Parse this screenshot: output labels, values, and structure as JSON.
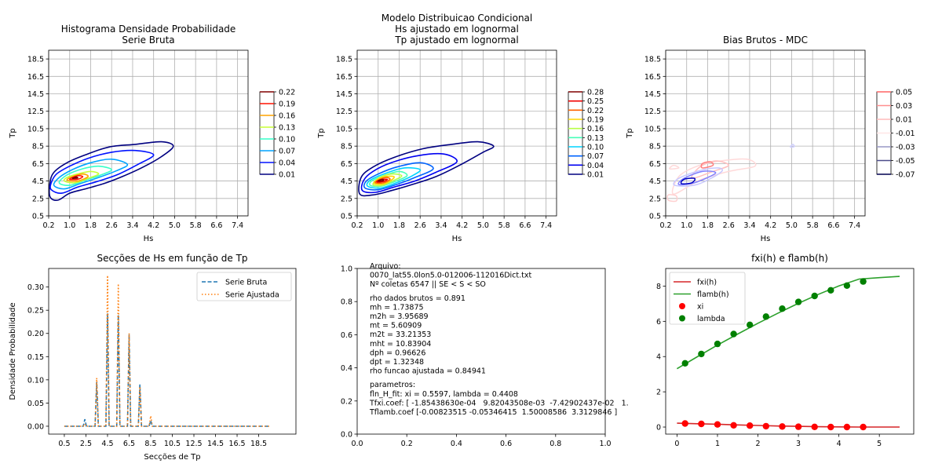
{
  "figure": {
    "panels": [
      {
        "id": "p1",
        "title": [
          "Histograma Densidade Probabilidade",
          "Serie Bruta"
        ],
        "xlabel": "Hs",
        "ylabel": "Tp"
      },
      {
        "id": "p2",
        "title": [
          "Modelo Distribuicao Condicional",
          "Hs ajustado em lognormal",
          "Tp ajustado em lognormal"
        ],
        "xlabel": "Hs",
        "ylabel": "Tp"
      },
      {
        "id": "p3",
        "title": [
          "Bias Brutos - MDC"
        ],
        "xlabel": "Hs",
        "ylabel": "Tp"
      },
      {
        "id": "p4",
        "title": [
          "Secções de Hs em função de Tp"
        ],
        "xlabel": "Secções de Tp",
        "ylabel": "Densidade Probabilidade"
      },
      {
        "id": "p5",
        "title": [],
        "xlabel": "",
        "ylabel": ""
      },
      {
        "id": "p6",
        "title": [
          "fxi(h) e flamb(h)"
        ],
        "xlabel": "",
        "ylabel": ""
      }
    ]
  },
  "chart_data": [
    {
      "type": "contour",
      "panel": "p1",
      "title": "Histograma Densidade Probabilidade Serie Bruta",
      "xlabel": "Hs",
      "ylabel": "Tp",
      "xlim": [
        0.2,
        7.8
      ],
      "ylim": [
        0.5,
        19.5
      ],
      "xticks": [
        "0.2",
        "1.0",
        "1.8",
        "2.6",
        "3.4",
        "4.2",
        "5.0",
        "5.8",
        "6.6",
        "7.4"
      ],
      "yticks": [
        "0.5",
        "2.5",
        "4.5",
        "6.5",
        "8.5",
        "10.5",
        "12.5",
        "14.5",
        "16.5",
        "18.5"
      ],
      "grid": true,
      "colormap": "jet",
      "colorbar": [
        "0.01",
        "0.04",
        "0.07",
        "0.10",
        "0.13",
        "0.16",
        "0.19",
        "0.22"
      ],
      "peak": {
        "hs": 1.1,
        "tp": 4.9,
        "density": 0.22
      }
    },
    {
      "type": "contour",
      "panel": "p2",
      "title": "Modelo Distribuicao Condicional Hs ajustado em lognormal Tp ajustado em lognormal",
      "xlabel": "Hs",
      "ylabel": "Tp",
      "xlim": [
        0.2,
        7.8
      ],
      "ylim": [
        0.5,
        19.5
      ],
      "xticks": [
        "0.2",
        "1.0",
        "1.8",
        "2.6",
        "3.4",
        "4.2",
        "5.0",
        "5.8",
        "6.6",
        "7.4"
      ],
      "yticks": [
        "0.5",
        "2.5",
        "4.5",
        "6.5",
        "8.5",
        "10.5",
        "12.5",
        "14.5",
        "16.5",
        "18.5"
      ],
      "grid": true,
      "colormap": "jet",
      "colorbar": [
        "0.01",
        "0.04",
        "0.07",
        "0.10",
        "0.13",
        "0.16",
        "0.19",
        "0.22",
        "0.25",
        "0.28"
      ],
      "peak": {
        "hs": 1.1,
        "tp": 4.6,
        "density": 0.28
      }
    },
    {
      "type": "contour",
      "panel": "p3",
      "title": "Bias Brutos - MDC",
      "xlabel": "Hs",
      "ylabel": "Tp",
      "xlim": [
        0.2,
        7.8
      ],
      "ylim": [
        0.5,
        19.5
      ],
      "xticks": [
        "0.2",
        "1.0",
        "1.8",
        "2.6",
        "3.4",
        "4.2",
        "5.0",
        "5.8",
        "6.6",
        "7.4"
      ],
      "yticks": [
        "0.5",
        "2.5",
        "4.5",
        "6.5",
        "8.5",
        "10.5",
        "12.5",
        "14.5",
        "16.5",
        "18.5"
      ],
      "grid": true,
      "colormap": "seismic",
      "colorbar": [
        "-0.07",
        "-0.05",
        "-0.03",
        "-0.01",
        "0.01",
        "0.03",
        "0.05"
      ]
    },
    {
      "type": "line",
      "panel": "p4",
      "title": "Secções de Hs em função de Tp",
      "xlabel": "Secções de Tp",
      "ylabel": "Densidade Probabilidade",
      "xticks": [
        "0.5",
        "2.5",
        "4.5",
        "6.5",
        "8.5",
        "10.5",
        "12.5",
        "14.5",
        "16.5",
        "18.5"
      ],
      "xlim": [
        -0.95,
        21.95
      ],
      "ylim": [
        -0.017,
        0.34
      ],
      "yticks": [
        "0.00",
        "0.05",
        "0.10",
        "0.15",
        "0.20",
        "0.25",
        "0.30"
      ],
      "legend": "top-right",
      "series": [
        {
          "name": "Serie Bruta",
          "style": "dashed",
          "color": "#1f77b4",
          "peaks": [
            {
              "x": 2.4,
              "y": 0.015
            },
            {
              "x": 3.5,
              "y": 0.095
            },
            {
              "x": 4.5,
              "y": 0.243
            },
            {
              "x": 5.5,
              "y": 0.24
            },
            {
              "x": 6.5,
              "y": 0.197
            },
            {
              "x": 7.5,
              "y": 0.09
            },
            {
              "x": 8.5,
              "y": 0.012
            }
          ]
        },
        {
          "name": "Serie Ajustada",
          "style": "dotted",
          "color": "#ff7f0e",
          "peaks": [
            {
              "x": 2.4,
              "y": 0.005
            },
            {
              "x": 3.5,
              "y": 0.104
            },
            {
              "x": 4.5,
              "y": 0.325
            },
            {
              "x": 5.5,
              "y": 0.307
            },
            {
              "x": 6.5,
              "y": 0.2
            },
            {
              "x": 7.5,
              "y": 0.085
            },
            {
              "x": 8.5,
              "y": 0.022
            }
          ]
        }
      ],
      "xrange": [
        0.5,
        19.5
      ]
    },
    {
      "type": "text",
      "panel": "p5",
      "xlim": [
        0,
        1
      ],
      "ylim": [
        0,
        1
      ],
      "xticks": [
        "0.0",
        "0.2",
        "0.4",
        "0.6",
        "0.8",
        "1.0"
      ],
      "yticks": [
        "0.0",
        "0.2",
        "0.4",
        "0.6",
        "0.8",
        "1.0"
      ],
      "lines": [
        "Arquivo:",
        "0070_lat55.0lon5.0-012006-112016Dict.txt",
        "Nº coletas 6547 || SE < S < SO",
        "",
        "rho dados brutos = 0.891",
        "mh = 1.73875",
        "m2h = 3.95689",
        "mt = 5.60909",
        "m2t = 33.21353",
        "mht = 10.83904",
        "dph = 0.96626",
        "dpt = 1.32348",
        "rho funcao ajustada = 0.84941",
        "",
        "parametros:",
        "fln_H_fit: xi = 0.5597, lambda = 0.4408",
        "Tfxi.coef: [ -1.85438630e-04   9.82043508e-03  -7.42902437e-02   1.",
        "Tflamb.coef [-0.00823515 -0.05346415  1.50008586  3.3129846 ]"
      ]
    },
    {
      "type": "line",
      "panel": "p6",
      "title": "fxi(h) e flamb(h)",
      "xlim": [
        -0.28,
        5.85
      ],
      "ylim": [
        -0.4,
        9.0
      ],
      "xticks": [
        "0",
        "1",
        "2",
        "3",
        "4",
        "5"
      ],
      "yticks": [
        "0",
        "2",
        "4",
        "6",
        "8"
      ],
      "legend": "top-left",
      "series": [
        {
          "name": "fxi(h)",
          "type": "line",
          "color": "#d62728",
          "x": [
            0,
            0.5,
            1,
            1.5,
            2,
            2.5,
            3,
            3.5,
            4,
            4.5,
            5,
            5.5
          ],
          "y": [
            0.22,
            0.19,
            0.16,
            0.12,
            0.09,
            0.06,
            0.04,
            0.02,
            0.01,
            0.0,
            0.0,
            0.0
          ]
        },
        {
          "name": "flamb(h)",
          "type": "line",
          "color": "#2ca02c",
          "x": [
            0,
            0.5,
            1,
            1.5,
            2,
            2.5,
            3,
            3.5,
            4,
            4.5,
            5,
            5.5
          ],
          "y": [
            3.31,
            3.99,
            4.65,
            5.28,
            5.89,
            6.47,
            7.02,
            7.54,
            8.01,
            8.4,
            8.48,
            8.55
          ]
        },
        {
          "name": "xi",
          "type": "scatter",
          "color": "#ff0000",
          "x": [
            0.2,
            0.6,
            1.0,
            1.4,
            1.8,
            2.2,
            2.6,
            3.0,
            3.4,
            3.8,
            4.2,
            4.6
          ],
          "y": [
            0.2,
            0.18,
            0.15,
            0.1,
            0.08,
            0.05,
            0.03,
            0.02,
            0.01,
            0.0,
            0.0,
            0.0
          ]
        },
        {
          "name": "lambda",
          "type": "scatter",
          "color": "#008000",
          "x": [
            0.2,
            0.6,
            1.0,
            1.4,
            1.8,
            2.2,
            2.6,
            3.0,
            3.4,
            3.8,
            4.2,
            4.6
          ],
          "y": [
            3.62,
            4.15,
            4.72,
            5.28,
            5.8,
            6.27,
            6.72,
            7.1,
            7.44,
            7.76,
            8.03,
            8.26
          ]
        }
      ]
    }
  ]
}
